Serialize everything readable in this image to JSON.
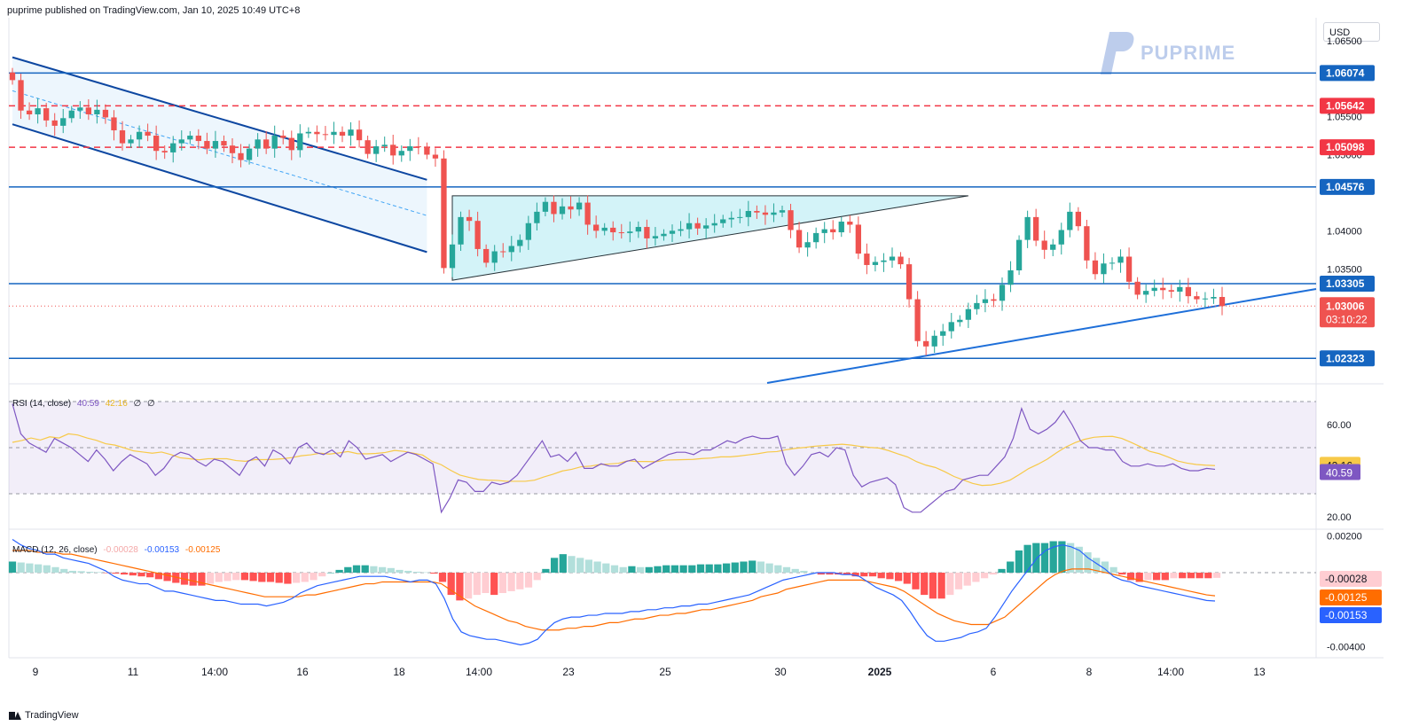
{
  "header": {
    "publisher_line": "puprime published on TradingView.com, Jan 10, 2025 10:49 UTC+8"
  },
  "currency_label": "USD",
  "watermark": {
    "brand": "PUPRIME"
  },
  "footer": {
    "brand": "TradingView"
  },
  "colors": {
    "up": "#26a69a",
    "down": "#ef5350",
    "level_line": "#1565c0",
    "resistance_dashed": "#f23645",
    "channel": "#0d47a1",
    "rsi": "#7e57c2",
    "rsi_ma": "#f7c948",
    "macd": "#2962ff",
    "signal": "#ff6d00"
  },
  "rsi_label": {
    "name": "RSI (14, close)",
    "v1": "40.59",
    "v2": "42.16",
    "v3": "∅",
    "v4": "∅"
  },
  "macd_label": {
    "name": "MACD (12, 26, close)",
    "v1": "-0.00028",
    "v2": "-0.00153",
    "v3": "-0.00125"
  },
  "chart_data": [
    {
      "type": "candlestick",
      "title": "",
      "y_axis_side": "right",
      "y_ticks": [
        "1.06500",
        "1.05500",
        "1.05000",
        "1.04000",
        "1.03500",
        "1.03000"
      ],
      "x_ticks": [
        "9",
        "11",
        "14:00",
        "16",
        "18",
        "14:00",
        "23",
        "25",
        "30",
        "2025",
        "6",
        "8",
        "14:00",
        "13"
      ],
      "ylim": [
        1.02,
        1.068
      ],
      "horizontal_levels": [
        {
          "value": 1.06074,
          "label": "1.06074",
          "style": "solid"
        },
        {
          "value": 1.05642,
          "label": "1.05642",
          "style": "dashed"
        },
        {
          "value": 1.05098,
          "label": "1.05098",
          "style": "dashed"
        },
        {
          "value": 1.04576,
          "label": "1.04576",
          "style": "solid"
        },
        {
          "value": 1.03305,
          "label": "1.03305",
          "style": "solid"
        },
        {
          "value": 1.02323,
          "label": "1.02323",
          "style": "solid"
        }
      ],
      "last_price": {
        "label": "1.03006",
        "countdown": "03:10:22"
      },
      "close_series": [
        1.0598,
        1.0558,
        1.0553,
        1.0561,
        1.0545,
        1.0538,
        1.0548,
        1.0558,
        1.0562,
        1.0553,
        1.0559,
        1.0549,
        1.0532,
        1.0515,
        1.052,
        1.053,
        1.0525,
        1.0505,
        1.0503,
        1.0515,
        1.052,
        1.0525,
        1.0518,
        1.0508,
        1.0518,
        1.0512,
        1.0502,
        1.0493,
        1.0508,
        1.052,
        1.0508,
        1.0525,
        1.0522,
        1.0506,
        1.0528,
        1.053,
        1.0527,
        1.0526,
        1.053,
        1.0525,
        1.0533,
        1.0519,
        1.0501,
        1.0511,
        1.0513,
        1.0499,
        1.0505,
        1.0511,
        1.051,
        1.05,
        1.0495,
        1.0351,
        1.0382,
        1.0418,
        1.0413,
        1.0376,
        1.0358,
        1.0373,
        1.0372,
        1.038,
        1.0388,
        1.041,
        1.0425,
        1.0438,
        1.0422,
        1.0432,
        1.0428,
        1.0437,
        1.0408,
        1.04,
        1.0404,
        1.0398,
        1.0397,
        1.0399,
        1.0405,
        1.039,
        1.0393,
        1.0396,
        1.04,
        1.0402,
        1.041,
        1.0403,
        1.0407,
        1.041,
        1.0415,
        1.0417,
        1.0418,
        1.0426,
        1.0424,
        1.0421,
        1.0424,
        1.0427,
        1.0401,
        1.0378,
        1.0385,
        1.0397,
        1.0402,
        1.0398,
        1.0412,
        1.0408,
        1.037,
        1.0355,
        1.0359,
        1.0361,
        1.0366,
        1.0356,
        1.031,
        1.0255,
        1.0248,
        1.0262,
        1.0268,
        1.028,
        1.0283,
        1.0297,
        1.0305,
        1.031,
        1.0308,
        1.0329,
        1.0348,
        1.0388,
        1.0418,
        1.0387,
        1.0375,
        1.0382,
        1.0401,
        1.0425,
        1.0406,
        1.0361,
        1.0343,
        1.0357,
        1.0358,
        1.0366,
        1.0333,
        1.0316,
        1.0321,
        1.0325,
        1.0322,
        1.032,
        1.0326,
        1.0314,
        1.031,
        1.0311,
        1.0313,
        1.0301
      ]
    },
    {
      "type": "line",
      "title": "RSI (14, close)",
      "ylim": [
        15,
        75
      ],
      "y_ticks": [
        "60.00",
        "20.00"
      ],
      "upper_band": 70,
      "mid_band": 50,
      "lower_band": 30,
      "series": [
        {
          "name": "RSI",
          "last": "40.59",
          "values": [
            69,
            56,
            52,
            50,
            48,
            54,
            52,
            50,
            47,
            44,
            49,
            45,
            40,
            44,
            47,
            45,
            43,
            38,
            41,
            46,
            48,
            47,
            44,
            42,
            45,
            44,
            41,
            38,
            44,
            46,
            42,
            49,
            47,
            43,
            50,
            52,
            48,
            47,
            49,
            46,
            53,
            50,
            45,
            46,
            47,
            44,
            46,
            48,
            47,
            45,
            43,
            22,
            28,
            36,
            35,
            31,
            31,
            35,
            34,
            35,
            38,
            43,
            48,
            53,
            46,
            47,
            44,
            48,
            41,
            41,
            43,
            42,
            42,
            44,
            45,
            41,
            43,
            45,
            47,
            48,
            48,
            47,
            49,
            49,
            51,
            53,
            52,
            54,
            55,
            54,
            54,
            55,
            43,
            38,
            42,
            47,
            48,
            46,
            50,
            49,
            38,
            33,
            35,
            36,
            37,
            34,
            24,
            22,
            22,
            25,
            28,
            31,
            32,
            36,
            37,
            38,
            38,
            42,
            46,
            54,
            67,
            58,
            56,
            58,
            61,
            66,
            60,
            53,
            50,
            50,
            49,
            49,
            44,
            42,
            42,
            43,
            42,
            42,
            43,
            41,
            40,
            40,
            41,
            40.6
          ]
        },
        {
          "name": "RSI MA",
          "last": "42.16",
          "values": [
            52.3,
            53.1,
            54.2,
            53.3,
            54.7,
            54.2,
            56.0,
            55.5,
            54.2,
            53.2,
            51.7,
            51.1,
            49.9,
            48.6,
            48.1,
            47.6,
            48.1,
            47.0,
            45.6,
            45.2,
            44.7,
            45.2,
            45.2,
            45.2,
            44.4,
            44.1,
            44.8,
            44.8,
            44.9,
            45.2,
            45.7,
            46.5,
            46.9,
            47.6,
            47.2,
            47.7,
            48.3,
            47.4,
            47.3,
            47.5,
            47.9,
            48.8,
            48.4,
            47.6,
            46.8,
            44.1,
            42.6,
            40.2,
            38.1,
            37.1,
            36.2,
            35.9,
            35.8,
            35.4,
            35.4,
            35.4,
            35.9,
            37.3,
            38.5,
            39.9,
            40.6,
            41.7,
            42.0,
            42.7,
            42.9,
            43.2,
            44.3,
            44.0,
            44.0,
            43.9,
            44.6,
            44.7,
            44.8,
            44.9,
            45.3,
            45.5,
            46.0,
            46.0,
            46.4,
            46.9,
            47.4,
            48.1,
            48.3,
            49.1,
            49.7,
            50.1,
            50.6,
            50.9,
            51.2,
            51.5,
            51.1,
            50.5,
            50.1,
            49.8,
            48.7,
            47.3,
            46.0,
            43.9,
            42.4,
            41.4,
            39.6,
            37.5,
            36.0,
            34.5,
            33.6,
            33.8,
            34.6,
            35.9,
            38.3,
            40.9,
            42.8,
            45.0,
            47.8,
            50.3,
            52.2,
            53.6,
            54.5,
            54.8,
            54.9,
            54.0,
            52.3,
            50.4,
            48.4,
            47.4,
            45.9,
            44.2,
            43.3,
            42.7,
            42.4,
            42.2
          ]
        }
      ]
    },
    {
      "type": "bar+line",
      "title": "MACD (12, 26, close)",
      "ylim": [
        -0.0045,
        0.0023
      ],
      "y_ticks": [
        "0.00200",
        "-0.00400"
      ],
      "series": [
        {
          "name": "Histogram",
          "last": "-0.00028",
          "values": [
            0.0006,
            0.00055,
            0.0005,
            0.00045,
            0.0004,
            0.0003,
            0.0002,
            0.0001,
            8e-05,
            5e-05,
            3e-05,
            -2e-05,
            -5e-05,
            -0.0001,
            -0.00015,
            -0.0002,
            -0.00025,
            -0.00035,
            -0.00045,
            -0.00055,
            -0.00065,
            -0.0007,
            -0.0007,
            -0.0006,
            -0.0005,
            -0.00045,
            -0.0004,
            -0.0004,
            -0.00045,
            -0.0005,
            -0.0005,
            -0.00055,
            -0.0006,
            -0.00055,
            -0.0005,
            -0.0004,
            -0.0002,
            0.0,
            0.00015,
            0.0003,
            0.0004,
            0.0004,
            0.00035,
            0.0003,
            0.00025,
            0.00015,
            0.0001,
            5e-05,
            2e-05,
            -5e-05,
            -0.0005,
            -0.0012,
            -0.0015,
            -0.0014,
            -0.0012,
            -0.0011,
            -0.0012,
            -0.0011,
            -0.001,
            -0.0009,
            -0.0008,
            -0.0004,
            0.0002,
            0.0008,
            0.001,
            0.0009,
            0.0008,
            0.0007,
            0.0006,
            0.0005,
            0.0004,
            0.0003,
            0.00035,
            0.0003,
            0.0003,
            0.00035,
            0.0004,
            0.0004,
            0.0004,
            0.0004,
            0.00045,
            0.00045,
            0.00045,
            0.0005,
            0.00055,
            0.0006,
            0.00065,
            0.0006,
            0.0005,
            0.0004,
            0.0003,
            0.0002,
            0.0001,
            0.0,
            -0.0001,
            -0.0001,
            -0.0001,
            -0.0001,
            -0.0002,
            -0.0002,
            -0.0002,
            -0.0003,
            -0.00035,
            -0.00045,
            -0.0006,
            -0.0009,
            -0.0012,
            -0.0014,
            -0.0014,
            -0.0012,
            -0.0009,
            -0.0007,
            -0.0005,
            -0.0003,
            -0.0001,
            0.0002,
            0.0006,
            0.0012,
            0.0015,
            0.0016,
            0.0016,
            0.0017,
            0.0017,
            0.0016,
            0.0014,
            0.0011,
            0.0008,
            0.0006,
            0.0003,
            -0.0001,
            -0.0004,
            -0.0005,
            -0.0004,
            -0.0004,
            -0.0004,
            -0.0003,
            -0.0003,
            -0.0003,
            -0.0003,
            -0.0003,
            -0.00028
          ]
        },
        {
          "name": "MACD",
          "last": "-0.00153",
          "values": [
            0.0018,
            0.0015,
            0.0013,
            0.0012,
            0.001,
            0.001,
            0.0008,
            0.0007,
            0.0006,
            0.0005,
            0.0003,
            0.0001,
            -0.0002,
            -0.0004,
            -0.0005,
            -0.0006,
            -0.0006,
            -0.0008,
            -0.001,
            -0.001,
            -0.0011,
            -0.0012,
            -0.0013,
            -0.0014,
            -0.0015,
            -0.0015,
            -0.0016,
            -0.0017,
            -0.0017,
            -0.0017,
            -0.0018,
            -0.0017,
            -0.0016,
            -0.0014,
            -0.0011,
            -0.0009,
            -0.0007,
            -0.0006,
            -0.0005,
            -0.0004,
            -0.0003,
            -0.0002,
            -0.0002,
            -0.0002,
            -0.0002,
            -0.0003,
            -0.0004,
            -0.0005,
            -0.0004,
            -0.0004,
            -0.0006,
            -0.0014,
            -0.0025,
            -0.0032,
            -0.0034,
            -0.0035,
            -0.0036,
            -0.0036,
            -0.0037,
            -0.0038,
            -0.0039,
            -0.0038,
            -0.0036,
            -0.0031,
            -0.0027,
            -0.0025,
            -0.0024,
            -0.0024,
            -0.0023,
            -0.0023,
            -0.0022,
            -0.0022,
            -0.0022,
            -0.0021,
            -0.0021,
            -0.002,
            -0.002,
            -0.0019,
            -0.0019,
            -0.0018,
            -0.0018,
            -0.0017,
            -0.0017,
            -0.0016,
            -0.0015,
            -0.0014,
            -0.0013,
            -0.0012,
            -0.001,
            -0.0008,
            -0.0006,
            -0.0004,
            -0.0003,
            -0.0002,
            -0.0001,
            0.0,
            0.0,
            0.0,
            -0.0001,
            -0.0001,
            -0.0002,
            -0.0005,
            -0.0008,
            -0.001,
            -0.0012,
            -0.0015,
            -0.0021,
            -0.0028,
            -0.0034,
            -0.0037,
            -0.0037,
            -0.0036,
            -0.0035,
            -0.0033,
            -0.0032,
            -0.003,
            -0.0024,
            -0.0017,
            -0.001,
            -0.0004,
            0.0002,
            0.0008,
            0.0012,
            0.0014,
            0.0015,
            0.0014,
            0.0012,
            0.0008,
            0.0005,
            0.0002,
            -0.0002,
            -0.0004,
            -0.0005,
            -0.0007,
            -0.0008,
            -0.0009,
            -0.001,
            -0.0011,
            -0.0012,
            -0.0013,
            -0.0014,
            -0.0015,
            -0.00153
          ]
        },
        {
          "name": "Signal",
          "last": "-0.00125",
          "values": [
            0.0012,
            0.0012,
            0.0012,
            0.0011,
            0.0011,
            0.0011,
            0.001,
            0.001,
            0.0009,
            0.0008,
            0.0007,
            0.0006,
            0.0005,
            0.0004,
            0.0003,
            0.0002,
            0.0001,
            0.0,
            -0.0001,
            -0.0002,
            -0.0003,
            -0.0004,
            -0.0005,
            -0.0006,
            -0.0007,
            -0.0008,
            -0.0009,
            -0.001,
            -0.0011,
            -0.0012,
            -0.0013,
            -0.0013,
            -0.0013,
            -0.0013,
            -0.0013,
            -0.0012,
            -0.0012,
            -0.0011,
            -0.001,
            -0.0009,
            -0.0008,
            -0.0007,
            -0.0006,
            -0.0006,
            -0.0005,
            -0.0005,
            -0.0005,
            -0.0005,
            -0.0005,
            -0.0005,
            -0.0005,
            -0.0006,
            -0.0009,
            -0.0012,
            -0.0015,
            -0.0018,
            -0.002,
            -0.0022,
            -0.0024,
            -0.0026,
            -0.0027,
            -0.0029,
            -0.003,
            -0.0031,
            -0.0031,
            -0.0031,
            -0.003,
            -0.003,
            -0.0029,
            -0.0029,
            -0.0028,
            -0.0027,
            -0.0027,
            -0.0026,
            -0.0025,
            -0.0025,
            -0.0024,
            -0.0023,
            -0.0023,
            -0.0022,
            -0.0022,
            -0.0021,
            -0.002,
            -0.002,
            -0.0019,
            -0.0018,
            -0.0017,
            -0.0016,
            -0.0015,
            -0.0013,
            -0.0012,
            -0.0011,
            -0.0009,
            -0.0008,
            -0.0007,
            -0.0006,
            -0.0005,
            -0.0004,
            -0.0004,
            -0.0004,
            -0.0004,
            -0.0004,
            -0.0005,
            -0.0006,
            -0.0007,
            -0.0008,
            -0.001,
            -0.0013,
            -0.0016,
            -0.0019,
            -0.0022,
            -0.0024,
            -0.0026,
            -0.0027,
            -0.0028,
            -0.0028,
            -0.0028,
            -0.0026,
            -0.0024,
            -0.002,
            -0.0016,
            -0.0012,
            -0.0008,
            -0.0004,
            -0.0001,
            0.0001,
            0.0002,
            0.0002,
            0.0002,
            0.0001,
            0.0,
            -0.0001,
            -0.0002,
            -0.0003,
            -0.0004,
            -0.0005,
            -0.0006,
            -0.0007,
            -0.0008,
            -0.0009,
            -0.001,
            -0.0011,
            -0.0012,
            -0.00125
          ]
        }
      ]
    }
  ]
}
